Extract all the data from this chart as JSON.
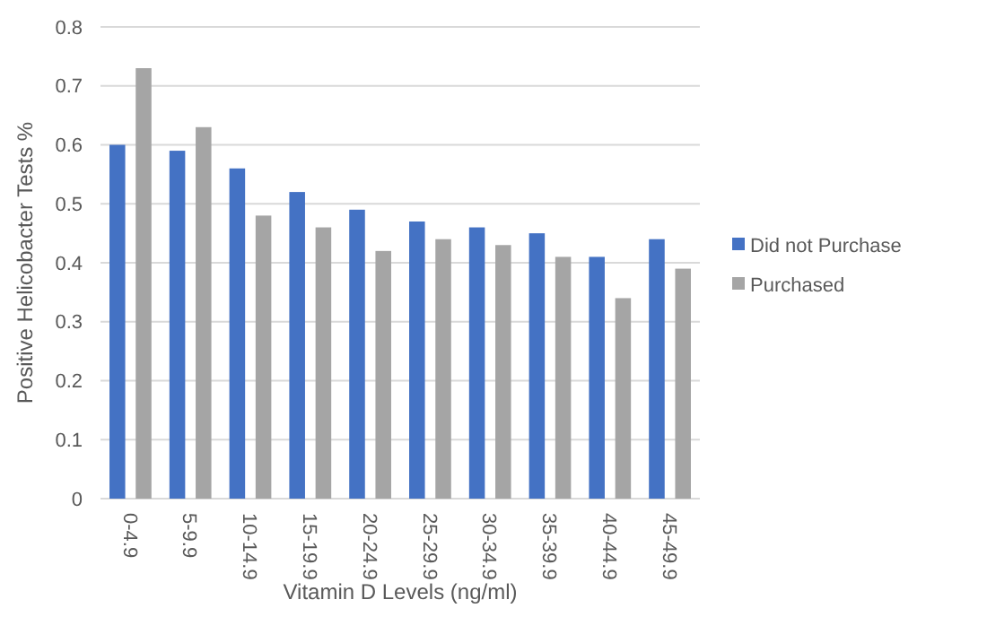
{
  "chart_data": {
    "type": "bar",
    "xlabel": "Vitamin D Levels (ng/ml)",
    "ylabel": "Positive  Helicobacter Tests %",
    "categories": [
      "0-4.9",
      "5-9.9",
      "10-14.9",
      "15-19.9",
      "20-24.9",
      "25-29.9",
      "30-34.9",
      "35-39.9",
      "40-44.9",
      "45-49.9"
    ],
    "series": [
      {
        "name": "Did not Purchase",
        "color": "#4472c4",
        "values": [
          0.6,
          0.59,
          0.56,
          0.52,
          0.49,
          0.47,
          0.46,
          0.45,
          0.41,
          0.44
        ]
      },
      {
        "name": "Purchased",
        "color": "#a5a5a5",
        "values": [
          0.73,
          0.63,
          0.48,
          0.46,
          0.42,
          0.44,
          0.43,
          0.41,
          0.34,
          0.39
        ]
      }
    ],
    "ylim": [
      0,
      0.8
    ],
    "yticks": [
      0,
      0.1,
      0.2,
      0.3,
      0.4,
      0.5,
      0.6,
      0.7,
      0.8
    ],
    "grid": "y",
    "legend": "right"
  }
}
